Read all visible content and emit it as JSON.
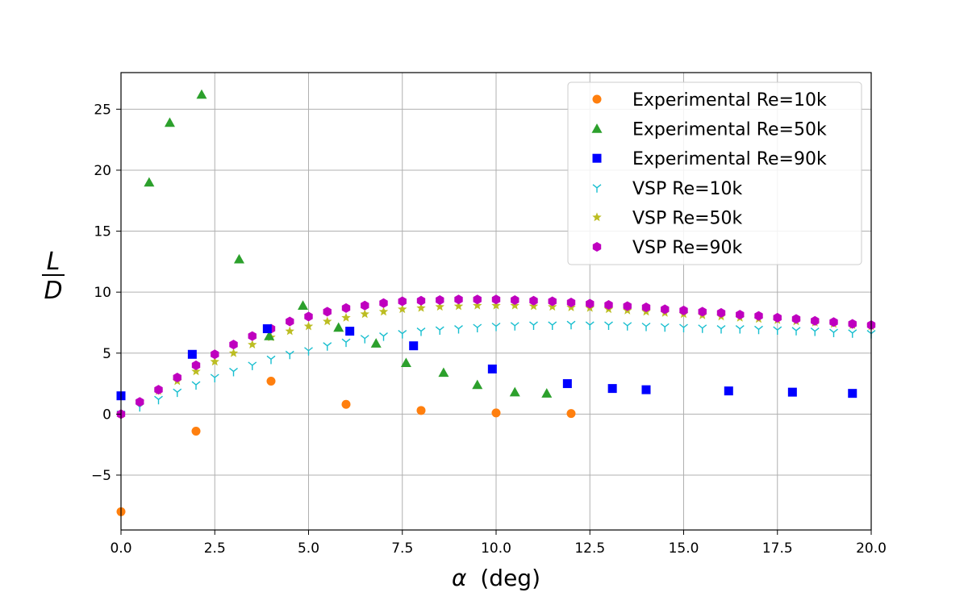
{
  "chart_data": {
    "type": "scatter",
    "title": "",
    "xlabel": "α (deg)",
    "xlabel_symbol": "α",
    "xlabel_unit": "(deg)",
    "ylabel_numerator": "L",
    "ylabel_denominator": "D",
    "xlim": [
      0,
      20
    ],
    "ylim": [
      -9.5,
      28
    ],
    "xticks": [
      0,
      2.5,
      5,
      7.5,
      10,
      12.5,
      15,
      17.5,
      20
    ],
    "xtick_labels": [
      "0.0",
      "2.5",
      "5.0",
      "7.5",
      "10.0",
      "12.5",
      "15.0",
      "17.5",
      "20.0"
    ],
    "yticks": [
      -5,
      0,
      5,
      10,
      15,
      20,
      25
    ],
    "ytick_labels": [
      "−5",
      "0",
      "5",
      "10",
      "15",
      "20",
      "25"
    ],
    "grid": true,
    "legend_position": "top-right",
    "series": [
      {
        "name": "Experimental Re=10k",
        "marker": "circle",
        "color": "#ff7f0e",
        "x": [
          0,
          2,
          4,
          6,
          8,
          10,
          12
        ],
        "y": [
          -8,
          -1.4,
          2.7,
          0.8,
          0.3,
          0.1,
          0.05
        ]
      },
      {
        "name": "Experimental Re=50k",
        "marker": "triangle",
        "color": "#2ca02c",
        "x": [
          0.75,
          1.3,
          2.15,
          3.15,
          3.95,
          4.85,
          5.8,
          6.8,
          7.6,
          8.6,
          9.5,
          10.5,
          11.35
        ],
        "y": [
          19,
          23.9,
          26.2,
          12.7,
          6.4,
          8.9,
          7.1,
          5.8,
          4.2,
          3.4,
          2.4,
          1.8,
          1.7
        ]
      },
      {
        "name": "Experimental Re=90k",
        "marker": "square",
        "color": "#0000ff",
        "x": [
          0,
          1.9,
          3.9,
          6.1,
          7.8,
          9.9,
          11.9,
          13.1,
          14,
          16.2,
          17.9,
          19.5
        ],
        "y": [
          1.5,
          4.9,
          7,
          6.8,
          5.6,
          3.7,
          2.5,
          2.1,
          2,
          1.9,
          1.8,
          1.7
        ]
      },
      {
        "name": "VSP Re=10k",
        "marker": "tri_down",
        "color": "#17becf",
        "x": [
          0,
          0.5,
          1,
          1.5,
          2,
          2.5,
          3,
          3.5,
          4,
          4.5,
          5,
          5.5,
          6,
          6.5,
          7,
          7.5,
          8,
          8.5,
          9,
          9.5,
          10,
          10.5,
          11,
          11.5,
          12,
          12.5,
          13,
          13.5,
          14,
          14.5,
          15,
          15.5,
          16,
          16.5,
          17,
          17.5,
          18,
          18.5,
          19,
          19.5,
          20
        ],
        "y": [
          0,
          0.6,
          1.2,
          1.8,
          2.4,
          3,
          3.5,
          4,
          4.5,
          4.9,
          5.2,
          5.6,
          5.9,
          6.2,
          6.4,
          6.6,
          6.8,
          6.9,
          7,
          7.1,
          7.2,
          7.25,
          7.3,
          7.3,
          7.35,
          7.3,
          7.3,
          7.25,
          7.2,
          7.15,
          7.1,
          7.05,
          7,
          7,
          6.95,
          6.9,
          6.85,
          6.8,
          6.7,
          6.65,
          6.6
        ]
      },
      {
        "name": "VSP Re=50k",
        "marker": "star",
        "color": "#bcbd22",
        "x": [
          0,
          0.5,
          1,
          1.5,
          2,
          2.5,
          3,
          3.5,
          4,
          4.5,
          5,
          5.5,
          6,
          6.5,
          7,
          7.5,
          8,
          8.5,
          9,
          9.5,
          10,
          10.5,
          11,
          11.5,
          12,
          12.5,
          13,
          13.5,
          14,
          14.5,
          15,
          15.5,
          16,
          16.5,
          17,
          17.5,
          18,
          18.5,
          19,
          19.5,
          20
        ],
        "y": [
          0,
          1,
          1.9,
          2.7,
          3.5,
          4.3,
          5,
          5.7,
          6.3,
          6.8,
          7.2,
          7.6,
          7.9,
          8.2,
          8.4,
          8.6,
          8.7,
          8.8,
          8.85,
          8.9,
          8.9,
          8.9,
          8.85,
          8.8,
          8.75,
          8.7,
          8.6,
          8.5,
          8.4,
          8.3,
          8.2,
          8.1,
          8,
          7.9,
          7.8,
          7.7,
          7.6,
          7.5,
          7.4,
          7.3,
          7.2
        ]
      },
      {
        "name": "VSP Re=90k",
        "marker": "hexagon",
        "color": "#bf00bf",
        "x": [
          0,
          0.5,
          1,
          1.5,
          2,
          2.5,
          3,
          3.5,
          4,
          4.5,
          5,
          5.5,
          6,
          6.5,
          7,
          7.5,
          8,
          8.5,
          9,
          9.5,
          10,
          10.5,
          11,
          11.5,
          12,
          12.5,
          13,
          13.5,
          14,
          14.5,
          15,
          15.5,
          16,
          16.5,
          17,
          17.5,
          18,
          18.5,
          19,
          19.5,
          20
        ],
        "y": [
          0,
          1,
          2,
          3,
          4,
          4.9,
          5.7,
          6.4,
          7,
          7.6,
          8,
          8.4,
          8.7,
          8.9,
          9.1,
          9.25,
          9.3,
          9.35,
          9.4,
          9.4,
          9.4,
          9.35,
          9.3,
          9.25,
          9.15,
          9.05,
          8.95,
          8.85,
          8.75,
          8.6,
          8.5,
          8.4,
          8.3,
          8.15,
          8.05,
          7.9,
          7.8,
          7.65,
          7.55,
          7.4,
          7.3
        ]
      }
    ]
  }
}
